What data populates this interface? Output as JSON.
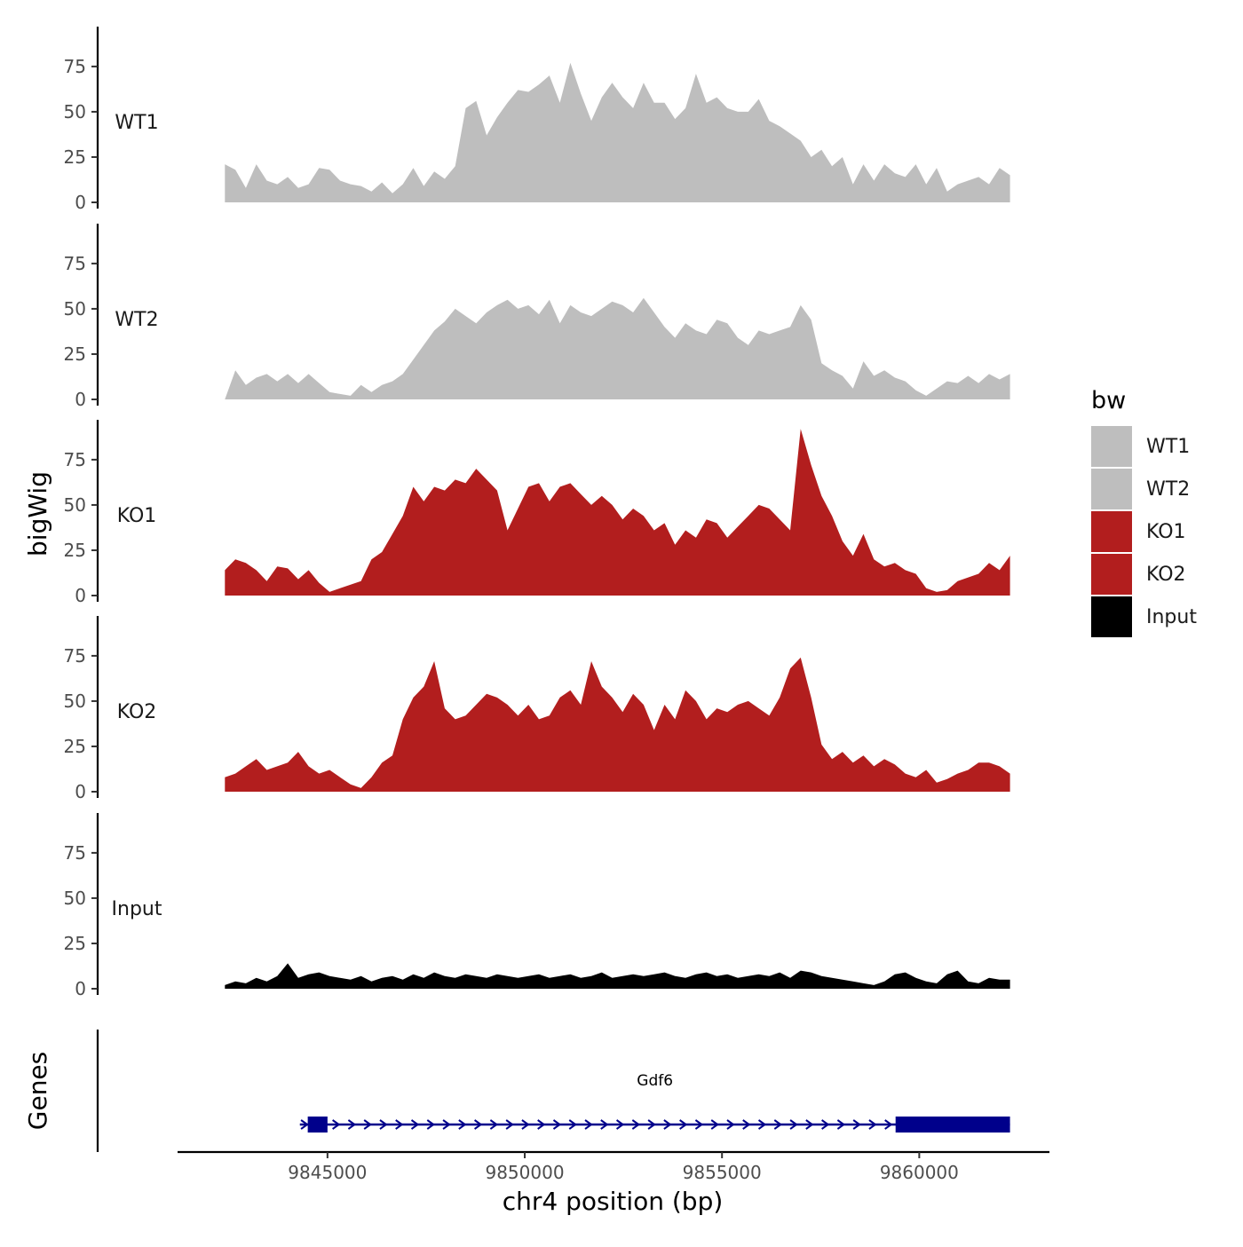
{
  "chart_data": {
    "type": "area",
    "title": "",
    "xlabel": "chr4 position (bp)",
    "ylabel": "bigWig",
    "genes_label": "Genes",
    "xlim": [
      9841200,
      9863300
    ],
    "ylim": [
      0,
      97
    ],
    "x_range": [
      9842400,
      9862300
    ],
    "x_ticks": [
      9845000,
      9850000,
      9855000,
      9860000
    ],
    "x_tick_labels": [
      "9845000",
      "9850000",
      "9855000",
      "9860000"
    ],
    "y_ticks": [
      0,
      25,
      50,
      75
    ],
    "y_tick_labels": [
      "0",
      "25",
      "50",
      "75"
    ],
    "legend": {
      "title": "bw",
      "position": "right",
      "entries": [
        {
          "label": "WT1",
          "color": "#bebebe"
        },
        {
          "label": "WT2",
          "color": "#bebebe"
        },
        {
          "label": "KO1",
          "color": "#b21e1e"
        },
        {
          "label": "KO2",
          "color": "#b21e1e"
        },
        {
          "label": "Input",
          "color": "#000000"
        }
      ]
    },
    "series": [
      {
        "name": "WT1",
        "color": "#bebebe",
        "values": [
          21,
          18,
          8,
          21,
          12,
          10,
          14,
          8,
          10,
          19,
          18,
          12,
          10,
          9,
          6,
          11,
          5,
          10,
          19,
          9,
          17,
          13,
          20,
          52,
          56,
          37,
          47,
          55,
          62,
          61,
          65,
          70,
          55,
          77,
          60,
          45,
          58,
          66,
          58,
          52,
          66,
          55,
          55,
          46,
          52,
          71,
          55,
          58,
          52,
          50,
          50,
          57,
          45,
          42,
          38,
          34,
          25,
          29,
          20,
          25,
          10,
          21,
          12,
          21,
          16,
          14,
          21,
          10,
          19,
          6,
          10,
          12,
          14,
          10,
          19,
          15
        ]
      },
      {
        "name": "WT2",
        "color": "#bebebe",
        "values": [
          0,
          16,
          8,
          12,
          14,
          10,
          14,
          9,
          14,
          9,
          4,
          3,
          2,
          8,
          4,
          8,
          10,
          14,
          22,
          30,
          38,
          43,
          50,
          46,
          42,
          48,
          52,
          55,
          50,
          52,
          47,
          55,
          42,
          52,
          48,
          46,
          50,
          54,
          52,
          48,
          56,
          48,
          40,
          34,
          42,
          38,
          36,
          44,
          42,
          34,
          30,
          38,
          36,
          38,
          40,
          52,
          44,
          20,
          16,
          13,
          6,
          21,
          13,
          16,
          12,
          10,
          5,
          2,
          6,
          10,
          9,
          13,
          9,
          14,
          11,
          14
        ]
      },
      {
        "name": "KO1",
        "color": "#b21e1e",
        "values": [
          14,
          20,
          18,
          14,
          8,
          16,
          15,
          9,
          14,
          7,
          2,
          4,
          6,
          8,
          20,
          24,
          34,
          44,
          60,
          52,
          60,
          58,
          64,
          62,
          70,
          64,
          58,
          36,
          48,
          60,
          62,
          52,
          60,
          62,
          56,
          50,
          55,
          50,
          42,
          48,
          44,
          36,
          40,
          28,
          36,
          32,
          42,
          40,
          32,
          38,
          44,
          50,
          48,
          42,
          36,
          92,
          72,
          55,
          44,
          30,
          22,
          34,
          20,
          16,
          18,
          14,
          12,
          4,
          2,
          3,
          8,
          10,
          12,
          18,
          14,
          22
        ]
      },
      {
        "name": "KO2",
        "color": "#b21e1e",
        "values": [
          8,
          10,
          14,
          18,
          12,
          14,
          16,
          22,
          14,
          10,
          12,
          8,
          4,
          2,
          8,
          16,
          20,
          40,
          52,
          58,
          72,
          46,
          40,
          42,
          48,
          54,
          52,
          48,
          42,
          48,
          40,
          42,
          52,
          56,
          48,
          72,
          58,
          52,
          44,
          54,
          48,
          34,
          48,
          40,
          56,
          50,
          40,
          46,
          44,
          48,
          50,
          46,
          42,
          52,
          68,
          74,
          52,
          26,
          18,
          22,
          16,
          20,
          14,
          18,
          15,
          10,
          8,
          12,
          5,
          7,
          10,
          12,
          16,
          16,
          14,
          10
        ]
      },
      {
        "name": "Input",
        "color": "#000000",
        "values": [
          2,
          4,
          3,
          6,
          4,
          7,
          14,
          6,
          8,
          9,
          7,
          6,
          5,
          7,
          4,
          6,
          7,
          5,
          8,
          6,
          9,
          7,
          6,
          8,
          7,
          6,
          8,
          7,
          6,
          7,
          8,
          6,
          7,
          8,
          6,
          7,
          9,
          6,
          7,
          8,
          7,
          8,
          9,
          7,
          6,
          8,
          9,
          7,
          8,
          6,
          7,
          8,
          7,
          9,
          6,
          10,
          9,
          7,
          6,
          5,
          4,
          3,
          2,
          4,
          8,
          9,
          6,
          4,
          3,
          8,
          10,
          4,
          3,
          6,
          5,
          5
        ]
      }
    ],
    "gene": {
      "name": "Gdf6",
      "start": 9844300,
      "end": 9862300,
      "strand": "+",
      "color": "#00008b",
      "thick_blocks": [
        [
          9844500,
          9845000
        ],
        [
          9859400,
          9862300
        ]
      ]
    }
  }
}
